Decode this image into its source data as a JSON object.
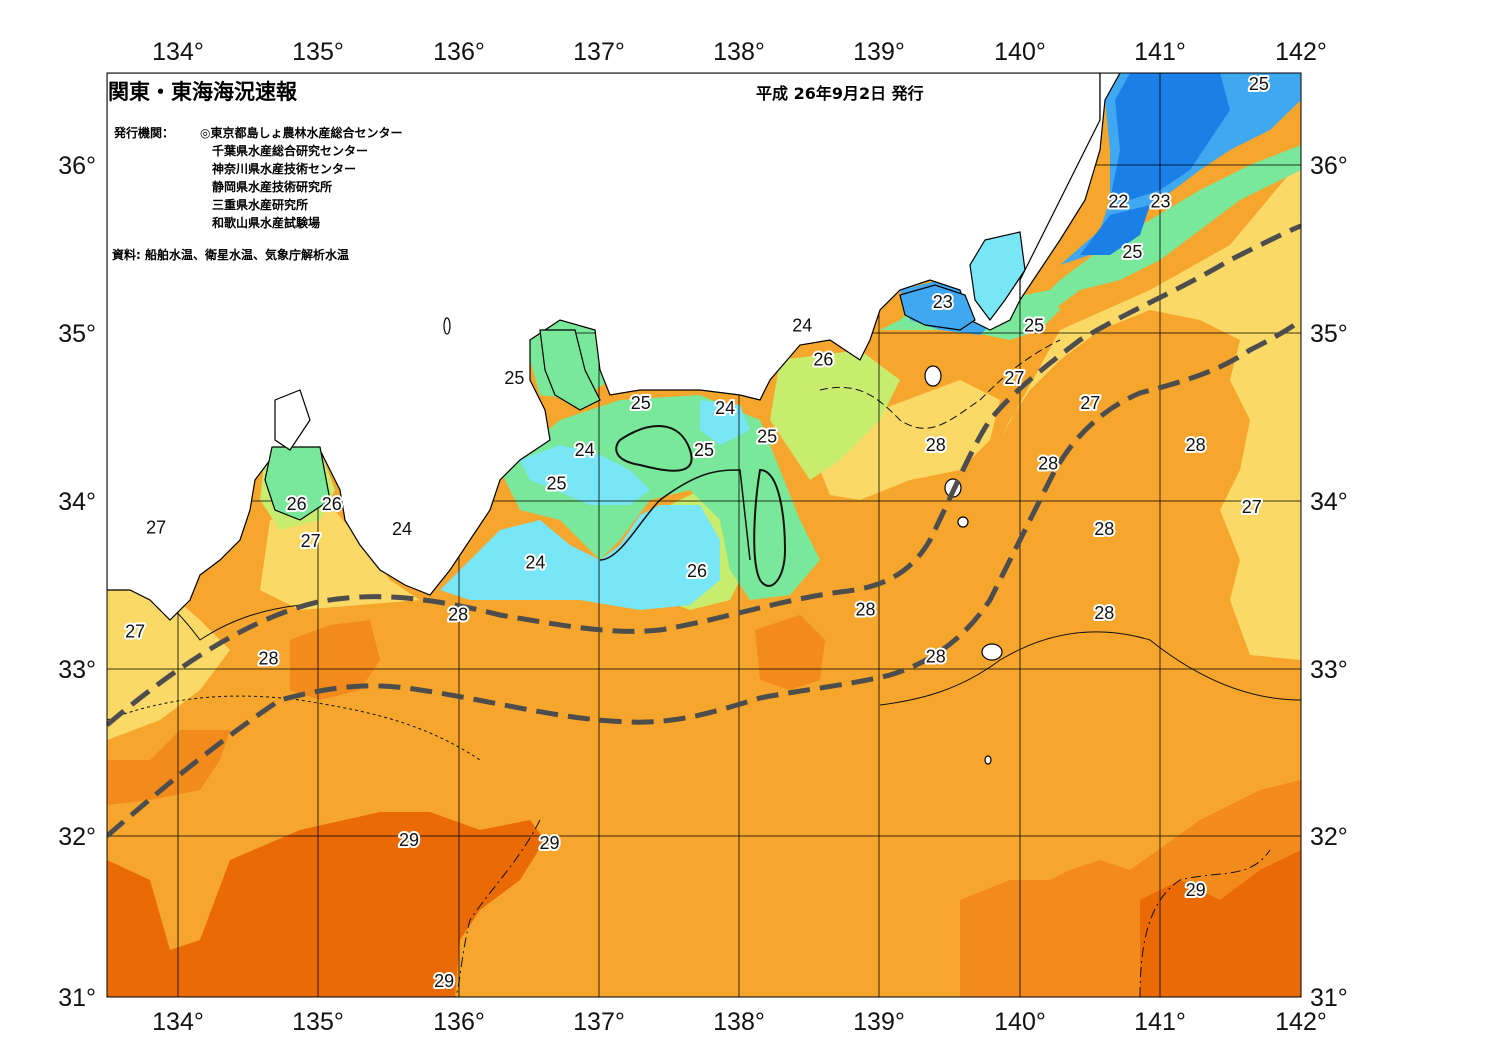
{
  "header": {
    "title": "関東・東海海況速報",
    "issue_date": "平成 26年9月2日 発行",
    "agencies_label": "発行機関：",
    "agencies": [
      "◎東京都島しょ農林水産総合センター",
      "千葉県水産総合研究センター",
      "神奈川県水産技術センター",
      "静岡県水産技術研究所",
      "三重県水産研究所",
      "和歌山県水産試験場"
    ],
    "source": "資料: 船舶水温、衛星水温、気象庁解析水温"
  },
  "axes": {
    "lon_labels": [
      "134°",
      "135°",
      "136°",
      "137°",
      "138°",
      "139°",
      "140°",
      "141°",
      "142°"
    ],
    "lat_labels": [
      "36°",
      "35°",
      "34°",
      "33°",
      "32°",
      "31°"
    ],
    "lon_range": [
      133.5,
      142.0
    ],
    "lat_range": [
      31.0,
      36.5
    ]
  },
  "colors": {
    "temp_22": "#1b7fe8",
    "temp_23": "#3fa8f0",
    "temp_24": "#78e6f6",
    "temp_25": "#7ae89a",
    "temp_26": "#c8ec6e",
    "temp_27": "#fbd967",
    "temp_28": "#f6a62c",
    "temp_28_5": "#f28a1c",
    "temp_29": "#ea6a06",
    "land": "#ffffff",
    "kuroshio_axis": "#4d4d4d"
  },
  "contour_labels": [
    {
      "text": "25",
      "lon": 141.7,
      "lat": 36.4
    },
    {
      "text": "22",
      "lon": 140.7,
      "lat": 35.7
    },
    {
      "text": "23",
      "lon": 141.0,
      "lat": 35.7
    },
    {
      "text": "25",
      "lon": 140.8,
      "lat": 35.4
    },
    {
      "text": "23",
      "lon": 139.45,
      "lat": 35.1
    },
    {
      "text": "25",
      "lon": 140.1,
      "lat": 34.96
    },
    {
      "text": "24",
      "lon": 138.45,
      "lat": 34.96
    },
    {
      "text": "26",
      "lon": 138.6,
      "lat": 34.76
    },
    {
      "text": "27",
      "lon": 139.96,
      "lat": 34.65
    },
    {
      "text": "25",
      "lon": 136.4,
      "lat": 34.65
    },
    {
      "text": "25",
      "lon": 137.3,
      "lat": 34.5
    },
    {
      "text": "24",
      "lon": 137.9,
      "lat": 34.47
    },
    {
      "text": "25",
      "lon": 138.2,
      "lat": 34.3
    },
    {
      "text": "27",
      "lon": 140.5,
      "lat": 34.5
    },
    {
      "text": "28",
      "lon": 139.4,
      "lat": 34.25
    },
    {
      "text": "28",
      "lon": 140.2,
      "lat": 34.14
    },
    {
      "text": "28",
      "lon": 141.25,
      "lat": 34.25
    },
    {
      "text": "24",
      "lon": 136.9,
      "lat": 34.22
    },
    {
      "text": "25",
      "lon": 137.75,
      "lat": 34.22
    },
    {
      "text": "25",
      "lon": 136.7,
      "lat": 34.02
    },
    {
      "text": "26",
      "lon": 134.85,
      "lat": 33.9
    },
    {
      "text": "26",
      "lon": 135.1,
      "lat": 33.9
    },
    {
      "text": "27",
      "lon": 141.65,
      "lat": 33.88
    },
    {
      "text": "27",
      "lon": 133.85,
      "lat": 33.76
    },
    {
      "text": "24",
      "lon": 135.6,
      "lat": 33.75
    },
    {
      "text": "28",
      "lon": 140.6,
      "lat": 33.75
    },
    {
      "text": "27",
      "lon": 134.95,
      "lat": 33.68
    },
    {
      "text": "24",
      "lon": 136.55,
      "lat": 33.55
    },
    {
      "text": "26",
      "lon": 137.7,
      "lat": 33.5
    },
    {
      "text": "28",
      "lon": 138.9,
      "lat": 33.27
    },
    {
      "text": "28",
      "lon": 140.6,
      "lat": 33.25
    },
    {
      "text": "28",
      "lon": 136.0,
      "lat": 33.24
    },
    {
      "text": "27",
      "lon": 133.7,
      "lat": 33.14
    },
    {
      "text": "28",
      "lon": 134.65,
      "lat": 32.98
    },
    {
      "text": "28",
      "lon": 139.4,
      "lat": 32.99
    },
    {
      "text": "29",
      "lon": 135.65,
      "lat": 31.9
    },
    {
      "text": "29",
      "lon": 136.65,
      "lat": 31.88
    },
    {
      "text": "29",
      "lon": 141.25,
      "lat": 31.6
    },
    {
      "text": "29",
      "lon": 135.9,
      "lat": 31.06
    }
  ]
}
